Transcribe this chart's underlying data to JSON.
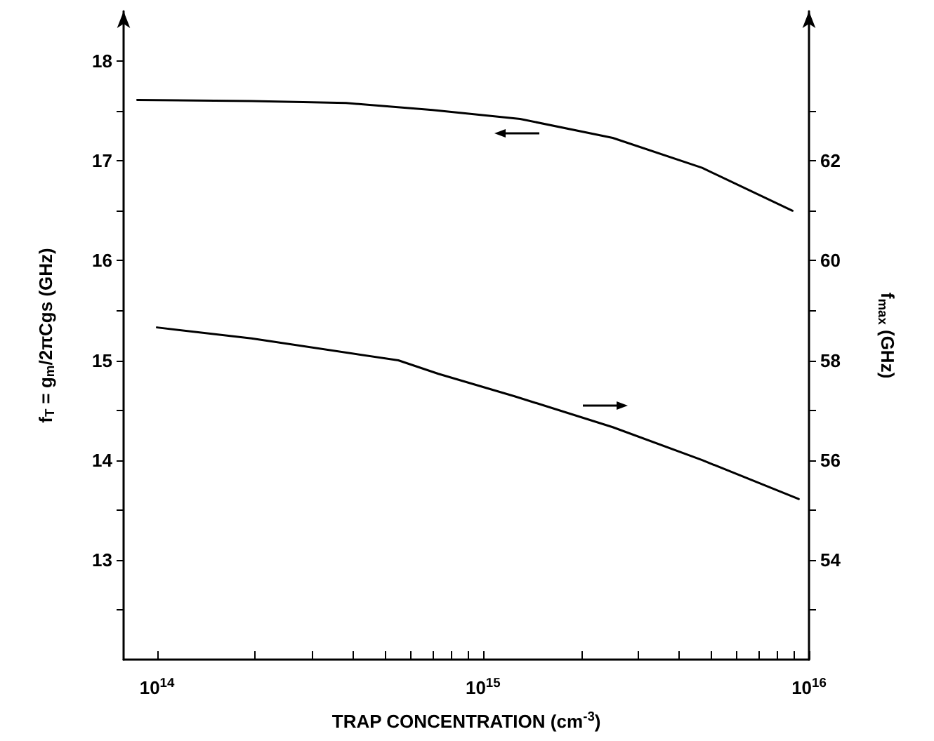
{
  "chart_data": {
    "type": "line",
    "xlabel": "TRAP CONCENTRATION (cm$^{-3}$)",
    "ylabel": "f$_{T}$ = g$_{m}$/2πCgs (GHz)",
    "y2label": "f$_{max}$ (GHz)",
    "log": "x",
    "grid": false,
    "marker": "none",
    "line_style": "solid",
    "xlim": [
      79000000000000.0,
      1e+16
    ],
    "xticks": [
      {
        "value": 100000000000000.0,
        "label": "10$^{14}$"
      },
      {
        "value": 200000000000000.0,
        "label": null
      },
      {
        "value": 300000000000000.0,
        "label": null
      },
      {
        "value": 400000000000000.0,
        "label": null
      },
      {
        "value": 500000000000000.0,
        "label": null
      },
      {
        "value": 600000000000000.0,
        "label": null
      },
      {
        "value": 700000000000000.0,
        "label": null
      },
      {
        "value": 800000000000000.0,
        "label": null
      },
      {
        "value": 900000000000000.0,
        "label": null
      },
      {
        "value": 1000000000000000.0,
        "label": "10$^{15}$"
      },
      {
        "value": 2000000000000000.0,
        "label": null
      },
      {
        "value": 3000000000000000.0,
        "label": null
      },
      {
        "value": 4000000000000000.0,
        "label": null
      },
      {
        "value": 5000000000000000.0,
        "label": null
      },
      {
        "value": 6000000000000000.0,
        "label": null
      },
      {
        "value": 7000000000000000.0,
        "label": null
      },
      {
        "value": 8000000000000000.0,
        "label": null
      },
      {
        "value": 9000000000000000.0,
        "label": null
      },
      {
        "value": 1e+16,
        "label": "10$^{16}$"
      }
    ],
    "ylim": [
      12,
      18.5
    ],
    "yticks": [
      {
        "value": 12.5,
        "label": null
      },
      13,
      {
        "value": 13.5,
        "label": null
      },
      14,
      {
        "value": 14.5,
        "label": null
      },
      15,
      {
        "value": 15.5,
        "label": null
      },
      16,
      {
        "value": 16.5,
        "label": null
      },
      17,
      {
        "value": 17.5,
        "label": null
      },
      18
    ],
    "y2lim": [
      52,
      65
    ],
    "y2ticks": [
      {
        "value": 53,
        "label": null
      },
      54,
      {
        "value": 55,
        "label": null
      },
      56,
      {
        "value": 57,
        "label": null
      },
      58,
      {
        "value": 59,
        "label": null
      },
      60,
      {
        "value": 61,
        "label": null
      },
      62,
      {
        "value": 63,
        "label": null
      }
    ],
    "series": [
      {
        "color": "#000000",
        "x": [
          87000000000000.0,
          195000000000000.0,
          380000000000000.0,
          700000000000000.0,
          1300000000000000.0,
          2500000000000000.0,
          4700000000000000.0,
          8900000000000000.0
        ],
        "values": [
          17.61,
          17.6,
          17.58,
          17.51,
          17.42,
          17.23,
          16.93,
          16.5
        ]
      },
      {
        "color": "#000000",
        "axis": "y2",
        "x": [
          100000000000000.0,
          195000000000000.0,
          550000000000000.0,
          730000000000000.0,
          1250000000000000.0,
          2500000000000000.0,
          4700000000000000.0,
          9300000000000000.0
        ],
        "values": [
          58.66,
          58.44,
          58.0,
          57.73,
          57.28,
          56.66,
          56.0,
          55.22
        ]
      }
    ]
  }
}
